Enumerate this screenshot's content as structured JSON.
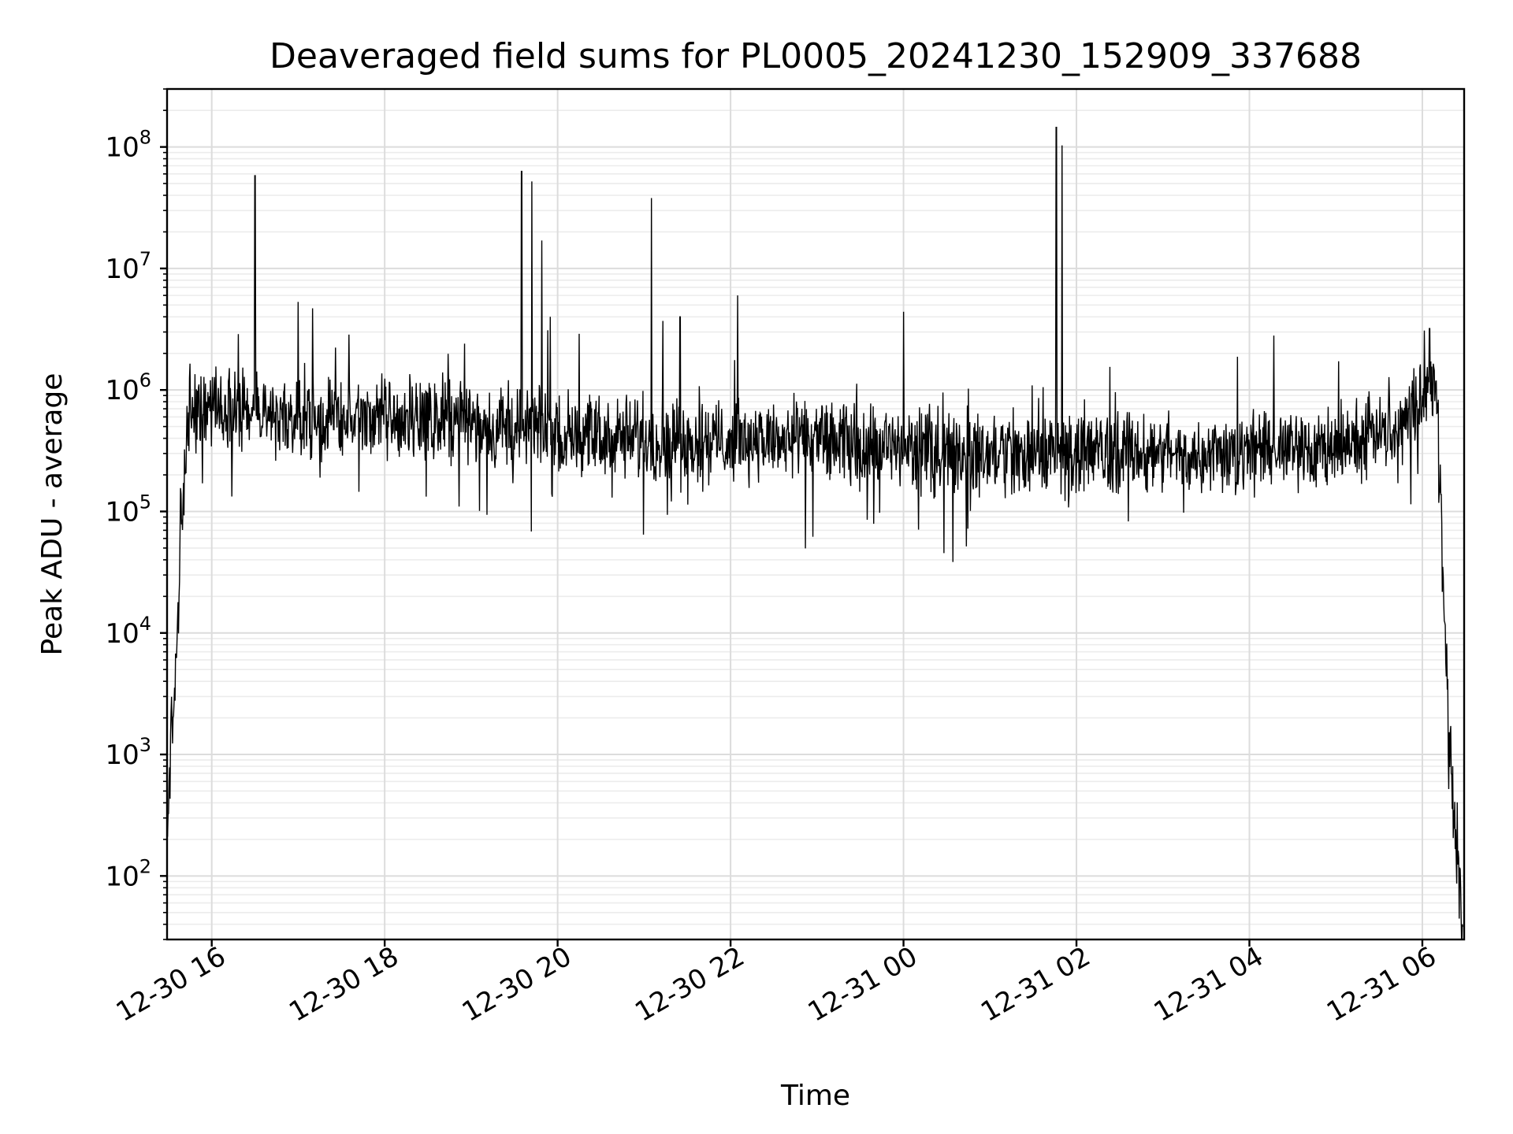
{
  "chart_data": {
    "type": "line",
    "title": "Deaveraged field sums for PL0005_20241230_152909_337688",
    "xlabel": "Time",
    "ylabel": "Peak ADU - average",
    "yscale": "log",
    "grid": true,
    "xlim": [
      "2024-12-30T15:29",
      "2024-12-31T06:29"
    ],
    "ylim": [
      30,
      300000000
    ],
    "x_ticks": [
      {
        "value": "2024-12-30T16:00",
        "label": "12-30 16"
      },
      {
        "value": "2024-12-30T18:00",
        "label": "12-30 18"
      },
      {
        "value": "2024-12-30T20:00",
        "label": "12-30 20"
      },
      {
        "value": "2024-12-30T22:00",
        "label": "12-30 22"
      },
      {
        "value": "2024-12-31T00:00",
        "label": "12-31 00"
      },
      {
        "value": "2024-12-31T02:00",
        "label": "12-31 02"
      },
      {
        "value": "2024-12-31T04:00",
        "label": "12-31 04"
      },
      {
        "value": "2024-12-31T06:00",
        "label": "12-31 06"
      }
    ],
    "y_ticks": [
      {
        "value": 100,
        "base": "10",
        "exp": "2"
      },
      {
        "value": 1000,
        "base": "10",
        "exp": "3"
      },
      {
        "value": 10000,
        "base": "10",
        "exp": "4"
      },
      {
        "value": 100000,
        "base": "10",
        "exp": "5"
      },
      {
        "value": 1000000,
        "base": "10",
        "exp": "6"
      },
      {
        "value": 10000000,
        "base": "10",
        "exp": "7"
      },
      {
        "value": 100000000,
        "base": "10",
        "exp": "8"
      }
    ],
    "series": [
      {
        "color": "#000000",
        "points": [
          [
            "2024-12-30T15:29",
            170
          ],
          [
            "2024-12-30T15:31",
            900
          ],
          [
            "2024-12-30T15:33",
            2500
          ],
          [
            "2024-12-30T15:35",
            4000
          ],
          [
            "2024-12-30T15:37",
            15000
          ],
          [
            "2024-12-30T15:38",
            60000
          ],
          [
            "2024-12-30T15:40",
            100000
          ],
          [
            "2024-12-30T15:42",
            350000
          ],
          [
            "2024-12-30T15:45",
            600000
          ],
          [
            "2024-12-30T16:00",
            800000
          ],
          [
            "2024-12-30T16:30",
            600000
          ],
          [
            "2024-12-30T17:00",
            550000
          ],
          [
            "2024-12-30T18:00",
            600000
          ],
          [
            "2024-12-30T19:00",
            550000
          ],
          [
            "2024-12-30T20:00",
            450000
          ],
          [
            "2024-12-30T21:00",
            400000
          ],
          [
            "2024-12-30T22:00",
            380000
          ],
          [
            "2024-12-30T23:00",
            380000
          ],
          [
            "2024-12-31T00:00",
            320000
          ],
          [
            "2024-12-31T01:00",
            300000
          ],
          [
            "2024-12-31T02:00",
            300000
          ],
          [
            "2024-12-31T03:00",
            300000
          ],
          [
            "2024-12-31T04:00",
            300000
          ],
          [
            "2024-12-31T05:00",
            350000
          ],
          [
            "2024-12-31T05:45",
            500000
          ],
          [
            "2024-12-31T06:05",
            1200000
          ],
          [
            "2024-12-31T06:10",
            900000
          ],
          [
            "2024-12-31T06:12",
            200000
          ],
          [
            "2024-12-31T06:15",
            20000
          ],
          [
            "2024-12-31T06:18",
            2000
          ],
          [
            "2024-12-31T06:22",
            300
          ],
          [
            "2024-12-31T06:26",
            70
          ],
          [
            "2024-12-31T06:28",
            30
          ]
        ],
        "spikes": [
          [
            "2024-12-30T16:30",
            58000000
          ],
          [
            "2024-12-30T17:00",
            5300000
          ],
          [
            "2024-12-30T17:10",
            4700000
          ],
          [
            "2024-12-30T19:35",
            63000000
          ],
          [
            "2024-12-30T19:42",
            52000000
          ],
          [
            "2024-12-30T19:49",
            17000000
          ],
          [
            "2024-12-30T19:55",
            4000000
          ],
          [
            "2024-12-30T20:15",
            2900000
          ],
          [
            "2024-12-30T21:05",
            38000000
          ],
          [
            "2024-12-30T21:13",
            3700000
          ],
          [
            "2024-12-30T21:25",
            4000000
          ],
          [
            "2024-12-30T22:05",
            6000000
          ],
          [
            "2024-12-31T00:00",
            4400000
          ],
          [
            "2024-12-31T01:46",
            145000000
          ],
          [
            "2024-12-31T01:50",
            103000000
          ],
          [
            "2024-12-31T04:17",
            2800000
          ],
          [
            "2024-12-31T06:05",
            3200000
          ]
        ]
      }
    ]
  }
}
